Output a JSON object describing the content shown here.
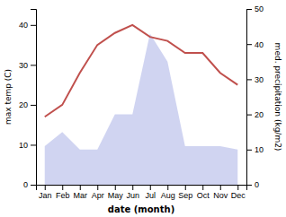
{
  "chart_data": {
    "type": "line",
    "xlabel": "date (month)",
    "ylabel": "max temp (C)",
    "y2label": "med. precipitation (kg/m2)",
    "categories": [
      "Jan",
      "Feb",
      "Mar",
      "Apr",
      "May",
      "Jun",
      "Jul",
      "Aug",
      "Sep",
      "Oct",
      "Nov",
      "Dec"
    ],
    "series": [
      {
        "type": "area",
        "axis": "y2",
        "color": "#b0b8e8",
        "values": [
          11,
          15,
          10,
          10,
          20,
          20,
          43,
          35,
          11,
          11,
          11,
          10
        ]
      },
      {
        "type": "line",
        "color": "#c0504d",
        "values": [
          17,
          20,
          28,
          35,
          38,
          40,
          37,
          36,
          33,
          33,
          28,
          25
        ]
      }
    ],
    "ylim": [
      0,
      44
    ],
    "yticks": [
      0,
      10,
      20,
      30,
      40
    ],
    "y2lim": [
      0,
      50
    ],
    "y2ticks": [
      0,
      10,
      20,
      30,
      40,
      50
    ]
  }
}
